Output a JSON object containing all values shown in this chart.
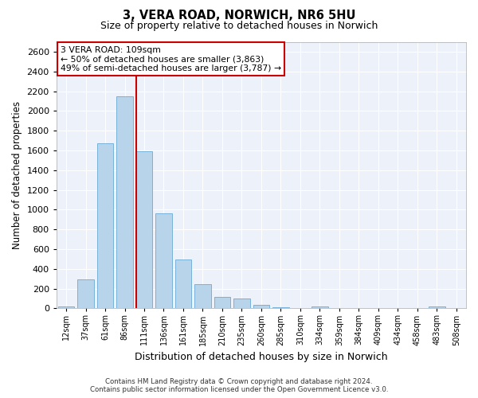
{
  "title_line1": "3, VERA ROAD, NORWICH, NR6 5HU",
  "title_line2": "Size of property relative to detached houses in Norwich",
  "xlabel": "Distribution of detached houses by size in Norwich",
  "ylabel": "Number of detached properties",
  "bar_color": "#b8d4ea",
  "bar_edge_color": "#6aaad4",
  "highlight_line_color": "#cc0000",
  "highlight_line_bin": 4,
  "annotation_text": "3 VERA ROAD: 109sqm\n← 50% of detached houses are smaller (3,863)\n49% of semi-detached houses are larger (3,787) →",
  "categories": [
    "12sqm",
    "37sqm",
    "61sqm",
    "86sqm",
    "111sqm",
    "136sqm",
    "161sqm",
    "185sqm",
    "210sqm",
    "235sqm",
    "260sqm",
    "285sqm",
    "310sqm",
    "334sqm",
    "359sqm",
    "384sqm",
    "409sqm",
    "434sqm",
    "458sqm",
    "483sqm",
    "508sqm"
  ],
  "values": [
    18,
    295,
    1670,
    2150,
    1595,
    965,
    495,
    248,
    118,
    98,
    38,
    12,
    4,
    18,
    4,
    4,
    2,
    0,
    0,
    18,
    0
  ],
  "ylim": [
    0,
    2700
  ],
  "yticks": [
    0,
    200,
    400,
    600,
    800,
    1000,
    1200,
    1400,
    1600,
    1800,
    2000,
    2200,
    2400,
    2600
  ],
  "background_color": "#edf2fa",
  "grid_color": "#ffffff",
  "footer_line1": "Contains HM Land Registry data © Crown copyright and database right 2024.",
  "footer_line2": "Contains public sector information licensed under the Open Government Licence v3.0."
}
